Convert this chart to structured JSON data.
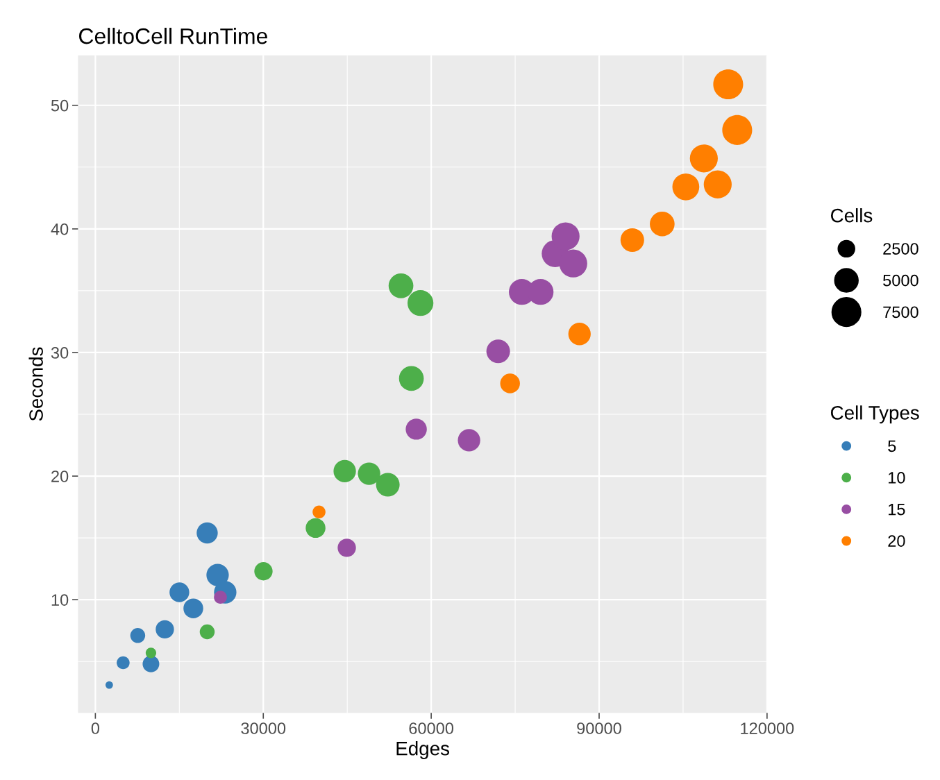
{
  "chart_data": {
    "type": "bubble",
    "title": "CelltoCell RunTime",
    "xlabel": "Edges",
    "ylabel": "Seconds",
    "xlim": [
      -3100,
      120000
    ],
    "ylim": [
      0.84,
      54.04
    ],
    "xticks": [
      0,
      30000,
      60000,
      90000,
      120000
    ],
    "yticks": [
      10,
      20,
      30,
      40,
      50
    ],
    "grid": true,
    "legend": "right",
    "legend_title": "Cell Types",
    "annotations": [
      "Cells"
    ],
    "size_legend": [
      2500,
      5000,
      7500
    ],
    "series": [
      {
        "name": "5",
        "color": "#377eb8",
        "x": [
          2480,
          4960,
          7570,
          9930,
          12410,
          15010,
          17500,
          19980,
          21840,
          23200
        ],
        "values": [
          3.1,
          4.9,
          7.1,
          4.8,
          7.6,
          10.6,
          9.3,
          15.4,
          12.0,
          10.6
        ],
        "sizes": [
          500,
          1500,
          2000,
          2500,
          3000,
          3500,
          3500,
          4000,
          4500,
          4500
        ]
      },
      {
        "name": "10",
        "color": "#4daf4a",
        "x": [
          9930,
          19980,
          30030,
          39340,
          44550,
          48900,
          52250,
          54600,
          56460,
          58080
        ],
        "values": [
          5.7,
          7.4,
          12.3,
          15.8,
          20.4,
          20.2,
          19.3,
          35.4,
          27.9,
          34.0
        ],
        "sizes": [
          1000,
          2000,
          3000,
          3500,
          4500,
          4500,
          5000,
          5500,
          5500,
          6000
        ]
      },
      {
        "name": "15",
        "color": "#984ea3",
        "x": [
          22340,
          44920,
          57330,
          66760,
          71970,
          76190,
          79540,
          82150,
          84010,
          85380
        ],
        "values": [
          10.2,
          14.2,
          23.8,
          22.9,
          30.1,
          34.9,
          34.9,
          38.0,
          39.4,
          37.2
        ],
        "sizes": [
          1500,
          3000,
          4000,
          4500,
          5000,
          6000,
          6000,
          6500,
          7000,
          7000
        ]
      },
      {
        "name": "20",
        "color": "#ff7f00",
        "x": [
          39960,
          74090,
          86500,
          95930,
          101270,
          105490,
          108710,
          111190,
          113060,
          114670
        ],
        "values": [
          17.1,
          27.5,
          31.5,
          39.1,
          40.4,
          43.4,
          45.7,
          43.6,
          51.7,
          48.0
        ],
        "sizes": [
          1500,
          3500,
          4500,
          5000,
          5500,
          6500,
          7000,
          7000,
          8000,
          8000
        ]
      }
    ]
  }
}
